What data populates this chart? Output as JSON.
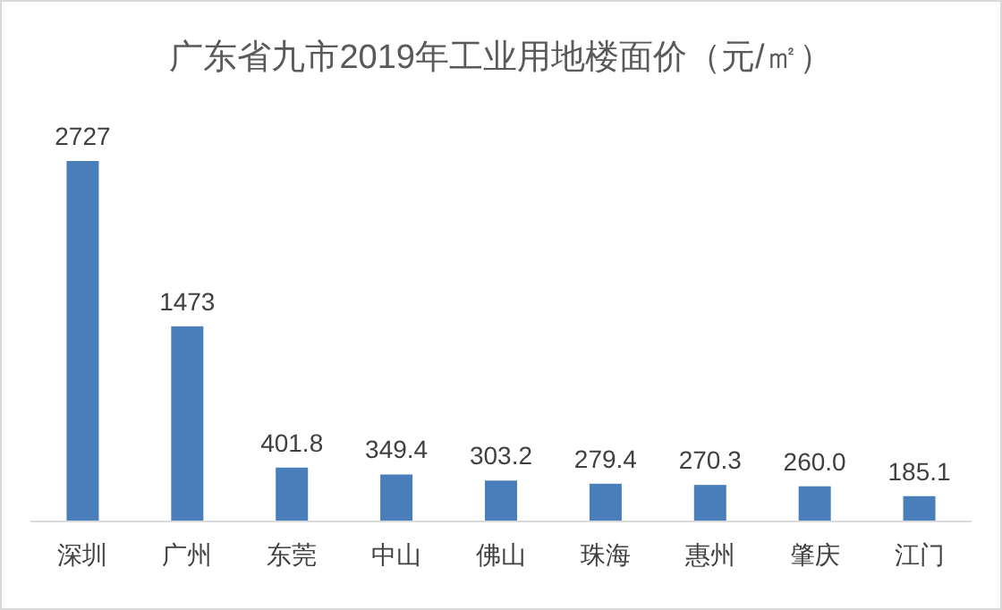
{
  "chart_data": {
    "type": "bar",
    "title": "广东省九市2019年工业用地楼面价（元/㎡）",
    "categories": [
      "深圳",
      "广州",
      "东莞",
      "中山",
      "佛山",
      "珠海",
      "惠州",
      "肇庆",
      "江门"
    ],
    "values": [
      2727,
      1473,
      401.8,
      349.4,
      303.2,
      279.4,
      270.3,
      260.0,
      185.1
    ],
    "value_labels": [
      "2727",
      "1473",
      "401.8",
      "349.4",
      "303.2",
      "279.4",
      "270.3",
      "260.0",
      "185.1"
    ],
    "color": "#4a7ebb"
  }
}
